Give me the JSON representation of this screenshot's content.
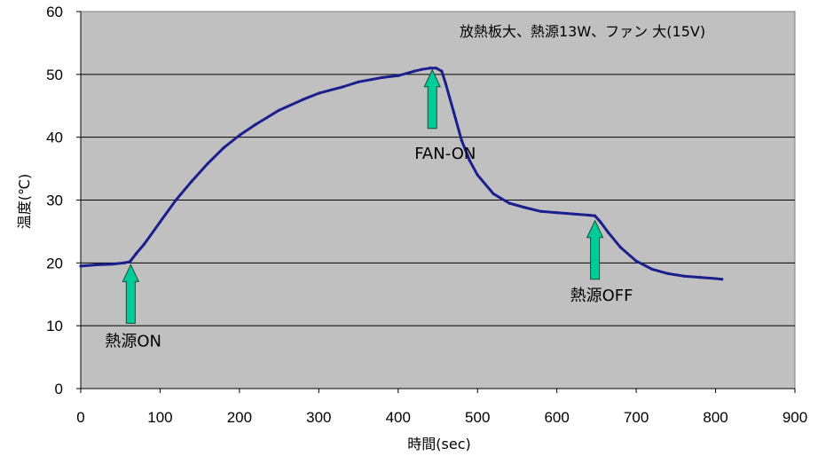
{
  "chart_data": {
    "type": "line",
    "title": "",
    "note": "放熱板大、熱源13W、ファン 大(15V)",
    "xlabel": "時間(sec)",
    "ylabel": "温度(℃)",
    "xlim": [
      0,
      900
    ],
    "ylim": [
      0,
      60
    ],
    "xticks": [
      0,
      100,
      200,
      300,
      400,
      500,
      600,
      700,
      800,
      900
    ],
    "yticks": [
      0,
      10,
      20,
      30,
      40,
      50,
      60
    ],
    "grid": "horizontal",
    "line_color": "#1a1f8c",
    "plot_background": "#c0c0c0",
    "arrow_color": "#00cc99",
    "series": [
      {
        "name": "",
        "x": [
          0,
          20,
          40,
          55,
          62,
          70,
          80,
          100,
          120,
          140,
          160,
          180,
          200,
          220,
          250,
          280,
          300,
          330,
          350,
          380,
          400,
          420,
          430,
          440,
          448,
          455,
          460,
          470,
          480,
          490,
          500,
          520,
          540,
          560,
          580,
          600,
          620,
          640,
          648,
          655,
          665,
          680,
          700,
          720,
          740,
          760,
          780,
          800,
          808
        ],
        "y": [
          19.5,
          19.7,
          19.8,
          20.0,
          20.2,
          21.5,
          23.0,
          26.5,
          30.0,
          33.0,
          35.8,
          38.3,
          40.3,
          42.0,
          44.3,
          46.0,
          47.0,
          48.0,
          48.8,
          49.5,
          49.8,
          50.5,
          50.8,
          51.0,
          51.0,
          50.5,
          48.5,
          44.0,
          39.5,
          36.3,
          34.0,
          31.0,
          29.5,
          28.8,
          28.2,
          28.0,
          27.8,
          27.6,
          27.5,
          26.5,
          24.8,
          22.5,
          20.3,
          19.0,
          18.3,
          17.9,
          17.7,
          17.5,
          17.4
        ]
      }
    ],
    "annotations": [
      {
        "label": "熱源ON",
        "x": 63,
        "y": 20
      },
      {
        "label": "FAN-ON",
        "x": 443,
        "y": 51
      },
      {
        "label": "熱源OFF",
        "x": 648,
        "y": 27
      }
    ]
  }
}
